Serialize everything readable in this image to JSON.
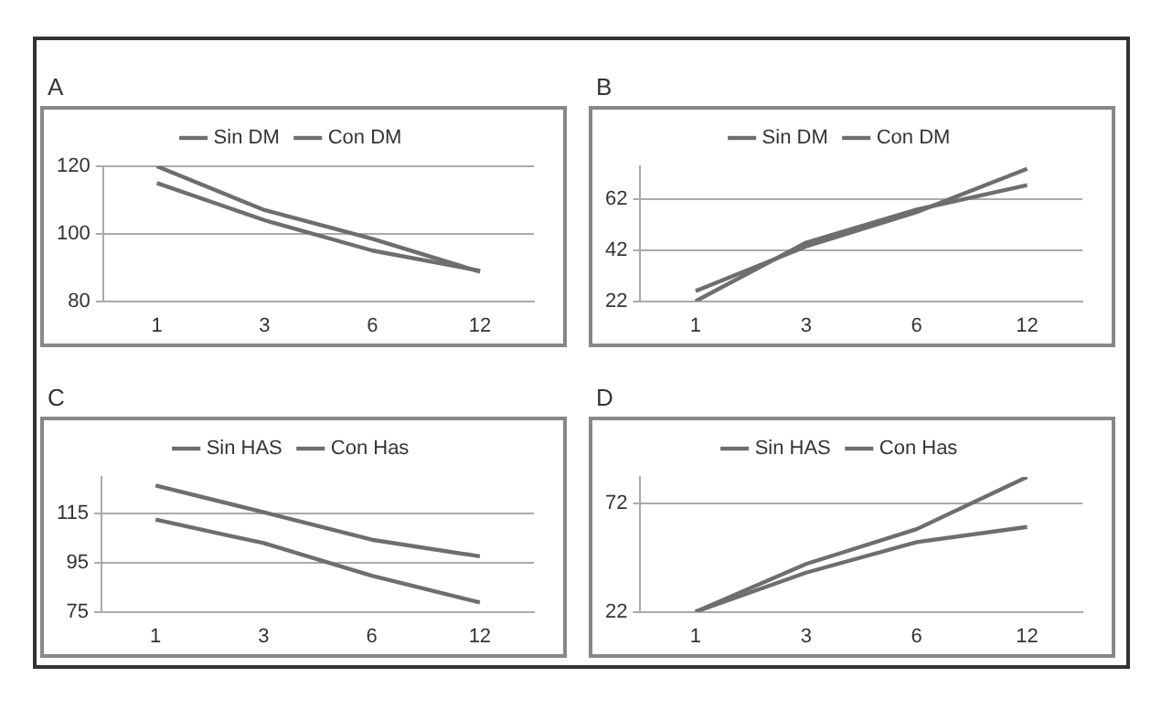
{
  "chart_data": [
    {
      "type": "line",
      "title": "A",
      "categories": [
        "1",
        "3",
        "6",
        "12"
      ],
      "series": [
        {
          "name": "Sin DM",
          "color": "#6e6e6e",
          "values": [
            120,
            107,
            98.5,
            88.7
          ]
        },
        {
          "name": "Con DM",
          "color": "#6e6e6e",
          "values": [
            115,
            104,
            95,
            89
          ]
        }
      ],
      "ylim": [
        80,
        120
      ],
      "yticks": [
        80,
        100,
        120
      ],
      "grid": "y",
      "legend": "top",
      "marker": "none",
      "line_style": "solid"
    },
    {
      "type": "line",
      "title": "B",
      "categories": [
        "1",
        "3",
        "6",
        "12"
      ],
      "series": [
        {
          "name": "Sin DM",
          "color": "#6e6e6e",
          "values": [
            26,
            43.5,
            57,
            74
          ]
        },
        {
          "name": "Con DM",
          "color": "#6e6e6e",
          "values": [
            22,
            45,
            58,
            67.6
          ]
        }
      ],
      "ylim": [
        22,
        75
      ],
      "yticks": [
        22,
        42,
        62
      ],
      "grid": "y",
      "legend": "top",
      "marker": "none",
      "line_style": "solid"
    },
    {
      "type": "line",
      "title": "C",
      "categories": [
        "1",
        "3",
        "6",
        "12"
      ],
      "series": [
        {
          "name": "Sin HAS",
          "color": "#6e6e6e",
          "values": [
            126.5,
            115.6,
            104.4,
            97.6
          ]
        },
        {
          "name": "Con Has",
          "color": "#6e6e6e",
          "values": [
            112.6,
            103,
            89.7,
            78.8
          ]
        }
      ],
      "ylim": [
        75,
        130
      ],
      "yticks": [
        75,
        95,
        115
      ],
      "grid": "y",
      "legend": "top",
      "marker": "none",
      "line_style": "solid"
    },
    {
      "type": "line",
      "title": "D",
      "categories": [
        "1",
        "3",
        "6",
        "12"
      ],
      "series": [
        {
          "name": "Sin HAS",
          "color": "#6e6e6e",
          "values": [
            22,
            44,
            60,
            84
          ]
        },
        {
          "name": "Con Has",
          "color": "#6e6e6e",
          "values": [
            22,
            40,
            54,
            61
          ]
        }
      ],
      "ylim": [
        22,
        84
      ],
      "yticks": [
        22,
        72
      ],
      "grid": "y",
      "legend": "top",
      "marker": "none",
      "line_style": "solid"
    }
  ]
}
